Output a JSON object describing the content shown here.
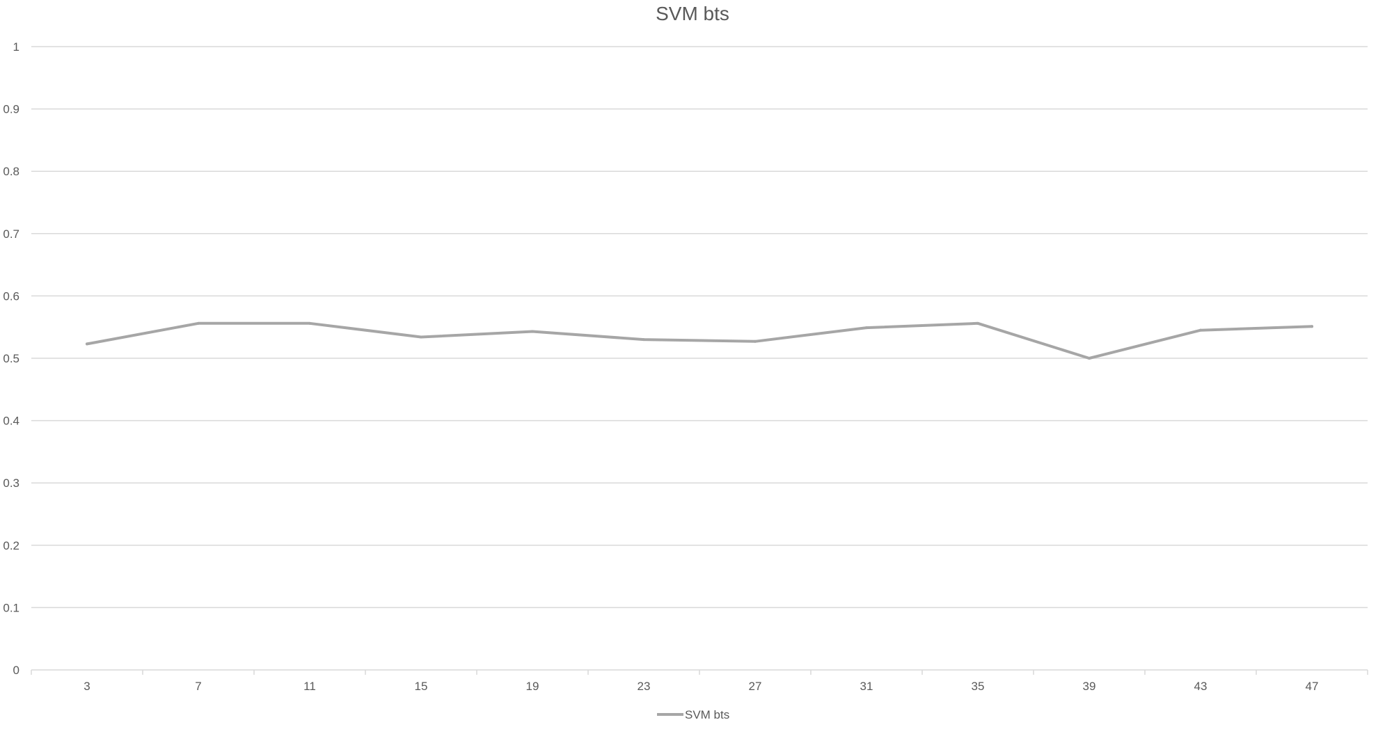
{
  "chart_data": {
    "type": "line",
    "title": "SVM bts",
    "xlabel": "",
    "ylabel": "",
    "categories": [
      "3",
      "7",
      "11",
      "15",
      "19",
      "23",
      "27",
      "31",
      "35",
      "39",
      "43",
      "47"
    ],
    "series": [
      {
        "name": "SVM bts",
        "values": [
          0.523,
          0.556,
          0.556,
          0.534,
          0.543,
          0.53,
          0.527,
          0.549,
          0.556,
          0.5,
          0.545,
          0.551
        ],
        "color": "#a6a6a6"
      }
    ],
    "ylim": [
      0,
      1
    ],
    "yticks": [
      "0",
      "0.1",
      "0.2",
      "0.3",
      "0.4",
      "0.5",
      "0.6",
      "0.7",
      "0.8",
      "0.9",
      "1"
    ],
    "grid": true,
    "legend_position": "bottom"
  }
}
